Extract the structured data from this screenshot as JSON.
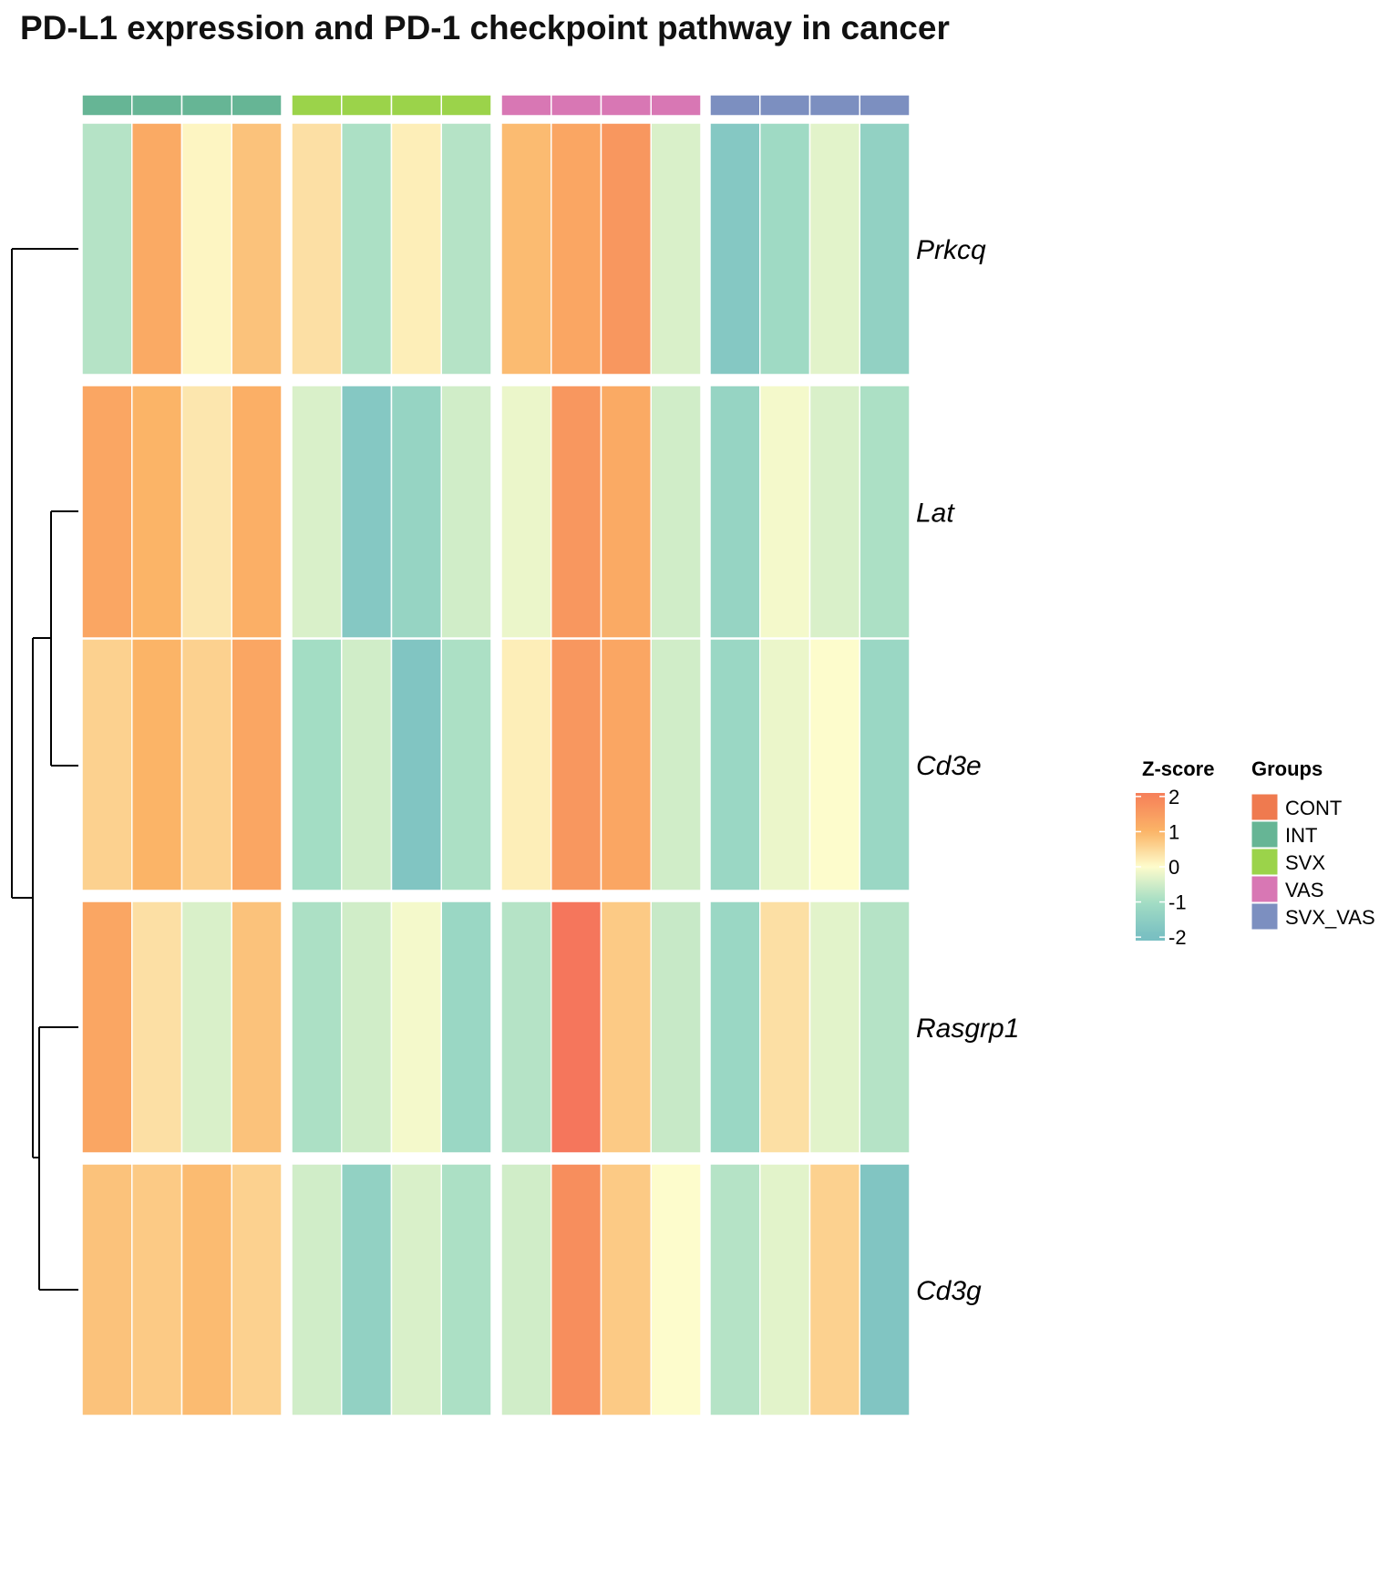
{
  "chart_data": {
    "type": "heatmap",
    "title": "PD-L1 expression and PD-1 checkpoint pathway in cancer",
    "column_groups": [
      {
        "name": "INT",
        "color": "#66b595",
        "n": 4
      },
      {
        "name": "SVX",
        "color": "#9bd34a",
        "n": 4
      },
      {
        "name": "VAS",
        "color": "#d877b4",
        "n": 4
      },
      {
        "name": "SVX_VAS",
        "color": "#7c8fc0",
        "n": 4
      }
    ],
    "rows": [
      "Prkcq",
      "Lat",
      "Cd3e",
      "Rasgrp1",
      "Cd3g"
    ],
    "row_splits": [
      [
        "Prkcq"
      ],
      [
        "Lat",
        "Cd3e"
      ],
      [
        "Rasgrp1"
      ],
      [
        "Cd3g"
      ]
    ],
    "values": [
      [
        -0.8,
        1.2,
        0.1,
        0.8,
        0.4,
        -0.9,
        0.2,
        -0.8,
        0.9,
        1.3,
        1.6,
        -0.4,
        -1.7,
        -1.1,
        -0.3,
        -1.4
      ],
      [
        1.3,
        1.0,
        0.3,
        1.1,
        -0.4,
        -1.7,
        -1.3,
        -0.5,
        -0.2,
        1.6,
        1.2,
        -0.5,
        -1.3,
        -0.1,
        -0.4,
        -0.9
      ],
      [
        0.6,
        1.0,
        0.6,
        1.3,
        -1.0,
        -0.5,
        -1.8,
        -0.9,
        0.2,
        1.6,
        1.3,
        -0.5,
        -1.2,
        -0.2,
        0.0,
        -1.2
      ],
      [
        1.3,
        0.4,
        -0.4,
        0.8,
        -0.9,
        -0.5,
        -0.1,
        -1.2,
        -0.8,
        2.3,
        0.7,
        -0.6,
        -1.2,
        0.4,
        -0.3,
        -0.8
      ],
      [
        0.8,
        0.7,
        0.9,
        0.6,
        -0.5,
        -1.4,
        -0.4,
        -0.9,
        -0.5,
        1.8,
        0.7,
        0.0,
        -0.8,
        -0.3,
        0.6,
        -1.8
      ]
    ],
    "colorbar": {
      "title": "Z-score",
      "ticks": [
        2,
        1,
        0,
        -1,
        -2
      ],
      "range": [
        -2,
        2
      ],
      "stops": [
        {
          "v": -2,
          "color": "#78bfc2"
        },
        {
          "v": -1,
          "color": "#a3ddc4"
        },
        {
          "v": 0,
          "color": "#fdfccc"
        },
        {
          "v": 1,
          "color": "#fbb467"
        },
        {
          "v": 2,
          "color": "#f6845a"
        },
        {
          "v": 2.5,
          "color": "#f46d5d"
        }
      ]
    },
    "legend": {
      "title": "Groups",
      "items": [
        {
          "name": "CONT",
          "color": "#ef7a4f"
        },
        {
          "name": "INT",
          "color": "#66b595"
        },
        {
          "name": "SVX",
          "color": "#9bd34a"
        },
        {
          "name": "VAS",
          "color": "#d877b4"
        },
        {
          "name": "SVX_VAS",
          "color": "#7c8fc0"
        }
      ]
    },
    "dendrogram": "rows clustered: (Prkcq, ((Lat, Cd3e), (Rasgrp1, Cd3g)))"
  }
}
